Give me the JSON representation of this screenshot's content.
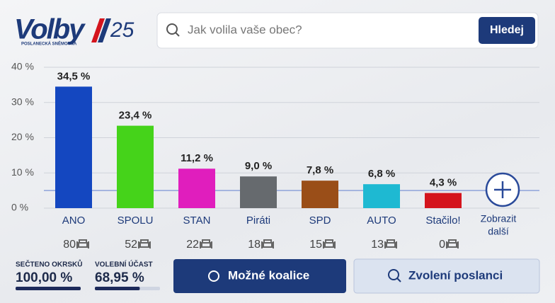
{
  "header": {
    "logo": "Volby",
    "logo_number": "25",
    "logo_subtitle": "POSLANECKÁ SNĚMOVNA",
    "search_placeholder": "Jak volila vaše obec?",
    "search_button": "Hledej"
  },
  "chart_data": {
    "type": "bar",
    "categories": [
      "ANO",
      "SPOLU",
      "STAN",
      "Piráti",
      "SPD",
      "AUTO",
      "Stačilo!"
    ],
    "values": [
      34.5,
      23.4,
      11.2,
      9.0,
      7.8,
      6.8,
      4.3
    ],
    "value_labels": [
      "34,5 %",
      "23,4 %",
      "11,2 %",
      "9,0 %",
      "7,8 %",
      "6,8 %",
      "4,3 %"
    ],
    "colors": [
      "#1447c0",
      "#45d31a",
      "#e01ebd",
      "#666a6e",
      "#9a4e18",
      "#1eb9d2",
      "#d4141d"
    ],
    "seats": [
      80,
      52,
      22,
      18,
      15,
      13,
      0
    ],
    "threshold": 5,
    "ylim": [
      0,
      40
    ],
    "yticks": [
      {
        "value": 0,
        "label": "0 %"
      },
      {
        "value": 10,
        "label": "10 %"
      },
      {
        "value": 20,
        "label": "20 %"
      },
      {
        "value": 30,
        "label": "30 %"
      },
      {
        "value": 40,
        "label": "40 %"
      }
    ],
    "grid": true,
    "more_label": [
      "Zobrazit",
      "další"
    ]
  },
  "stats": [
    {
      "title": "SEČTENO OKRSKŮ",
      "value": 100,
      "label": "100,00 %"
    },
    {
      "title": "VOLEBNÍ ÚČAST",
      "value": 68.95,
      "label": "68,95 %"
    }
  ],
  "buttons": [
    "Možné koalice",
    "Zvolení poslanci"
  ]
}
